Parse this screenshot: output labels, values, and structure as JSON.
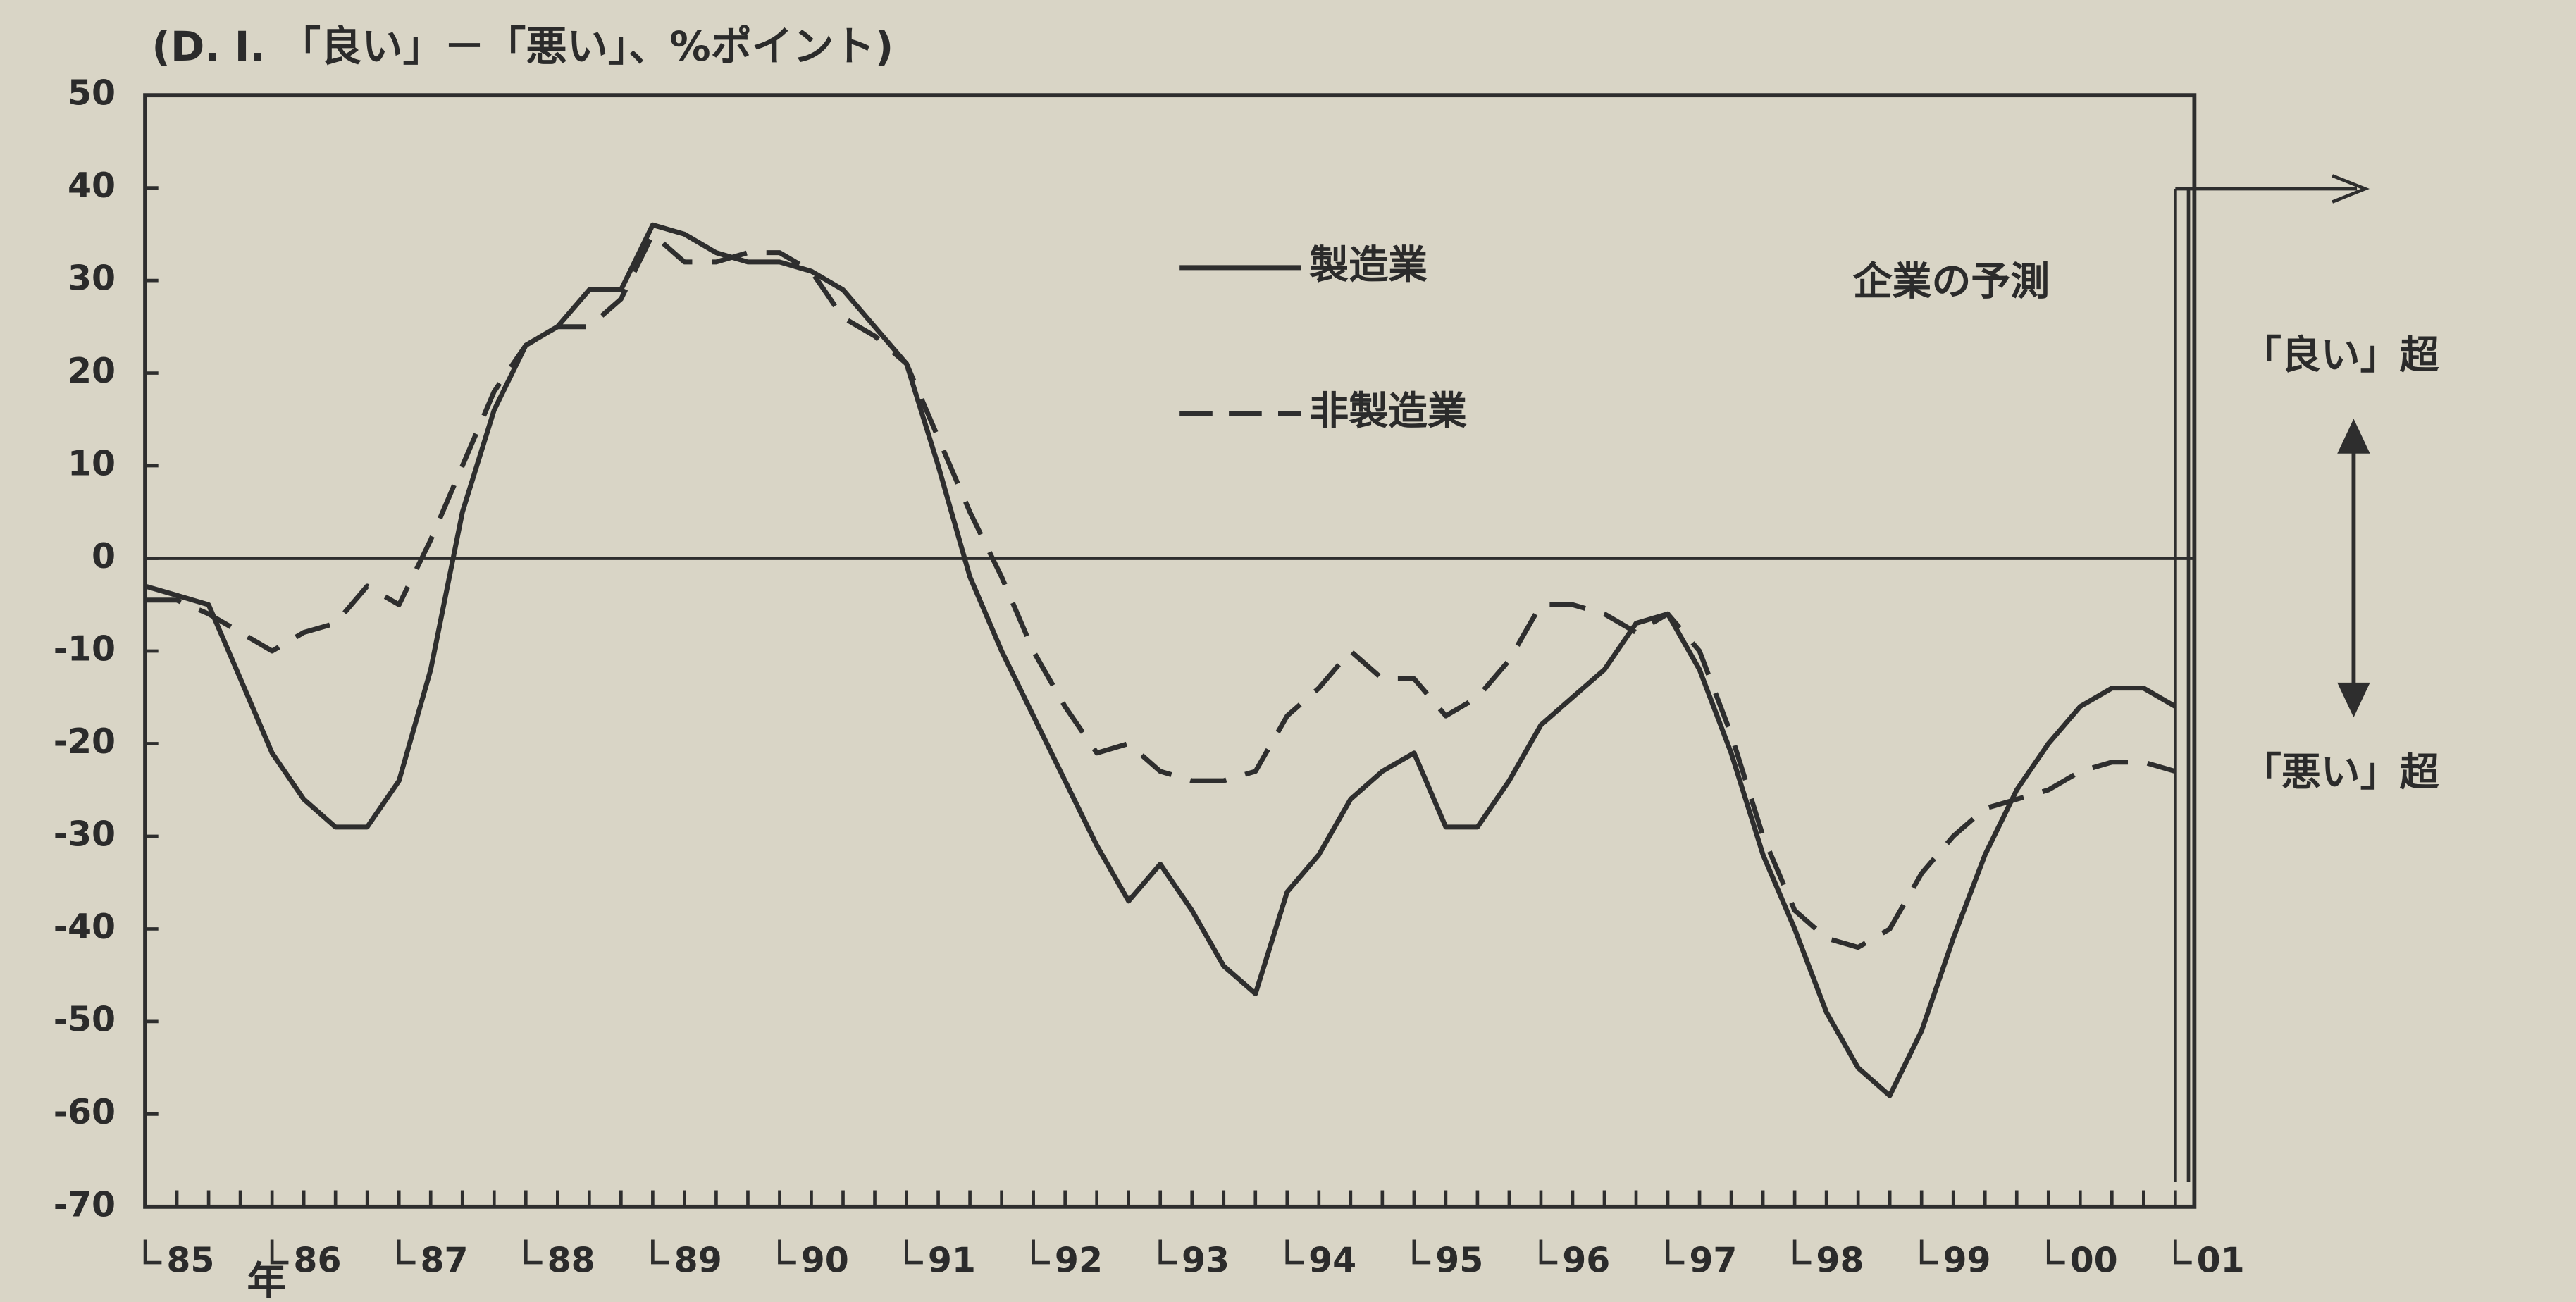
{
  "chart_data": {
    "type": "line",
    "title": "(D. I. 「良い」－「悪い」、%ポイント)",
    "x_label": "年",
    "annotations": [
      "企業の予測",
      "「良い」超",
      "「悪い」超"
    ],
    "x": [
      1985,
      1985.25,
      1985.5,
      1985.75,
      1986,
      1986.25,
      1986.5,
      1986.75,
      1987,
      1987.25,
      1987.5,
      1987.75,
      1988,
      1988.25,
      1988.5,
      1988.75,
      1989,
      1989.25,
      1989.5,
      1989.75,
      1990,
      1990.25,
      1990.5,
      1990.75,
      1991,
      1991.25,
      1991.5,
      1991.75,
      1992,
      1992.25,
      1992.5,
      1992.75,
      1993,
      1993.25,
      1993.5,
      1993.75,
      1994,
      1994.25,
      1994.5,
      1994.75,
      1995,
      1995.25,
      1995.5,
      1995.75,
      1996,
      1996.25,
      1996.5,
      1996.75,
      1997,
      1997.25,
      1997.5,
      1997.75,
      1998,
      1998.25,
      1998.5,
      1998.75,
      1999,
      1999.25,
      1999.5,
      1999.75,
      2000,
      2000.25,
      2000.5,
      2000.75,
      2001
    ],
    "series": [
      {
        "name": "製造業",
        "color": "#2e2e2e",
        "line_style": "solid",
        "values": [
          -3,
          -4,
          -5,
          -13,
          -21,
          -26,
          -29,
          -29,
          -24,
          -12,
          5,
          16,
          23,
          25,
          29,
          29,
          36,
          35,
          33,
          32,
          32,
          31,
          29,
          25,
          21,
          10,
          -2,
          -10,
          -17,
          -24,
          -31,
          -37,
          -33,
          -38,
          -44,
          -47,
          -36,
          -32,
          -26,
          -23,
          -21,
          -29,
          -29,
          -24,
          -18,
          -15,
          -12,
          -7,
          -6,
          -12,
          -21,
          -32,
          -40,
          -49,
          -55,
          -58,
          -51,
          -41,
          -32,
          -25,
          -20,
          -16,
          -14,
          -14,
          -16
        ]
      },
      {
        "name": "非製造業",
        "color": "#2e2e2e",
        "line_style": "dashed",
        "values": [
          -4.5,
          -4.5,
          -6,
          -8,
          -10,
          -8,
          -7,
          -3,
          -5,
          2,
          10,
          18,
          23,
          25,
          25,
          28,
          35,
          32,
          32,
          33,
          33,
          31,
          26,
          24,
          21,
          13,
          5,
          -2,
          -10,
          -16,
          -21,
          -20,
          -23,
          -24,
          -24,
          -23,
          -17,
          -14,
          -10,
          -13,
          -13,
          -17,
          -15,
          -11,
          -5,
          -5,
          -6,
          -8,
          -6,
          -10,
          -19,
          -30,
          -38,
          -41,
          -42,
          -40,
          -34,
          -30,
          -27,
          -26,
          -25,
          -23,
          -22,
          -22,
          -23
        ]
      }
    ],
    "xlim": [
      1985,
      2001.15
    ],
    "xticks": [
      {
        "value": 1985,
        "label": "85"
      },
      {
        "value": 1986,
        "label": "86"
      },
      {
        "value": 1987,
        "label": "87"
      },
      {
        "value": 1988,
        "label": "88"
      },
      {
        "value": 1989,
        "label": "89"
      },
      {
        "value": 1990,
        "label": "90"
      },
      {
        "value": 1991,
        "label": "91"
      },
      {
        "value": 1992,
        "label": "92"
      },
      {
        "value": 1993,
        "label": "93"
      },
      {
        "value": 1994,
        "label": "94"
      },
      {
        "value": 1995,
        "label": "95"
      },
      {
        "value": 1996,
        "label": "96"
      },
      {
        "value": 1997,
        "label": "97"
      },
      {
        "value": 1998,
        "label": "98"
      },
      {
        "value": 1999,
        "label": "99"
      },
      {
        "value": 2000,
        "label": "00"
      },
      {
        "value": 2001,
        "label": "01"
      }
    ],
    "ylim": [
      -70,
      50
    ],
    "yticks": [
      50,
      40,
      30,
      20,
      10,
      0,
      -10,
      -20,
      -30,
      -40,
      -50,
      -60,
      -70
    ]
  }
}
